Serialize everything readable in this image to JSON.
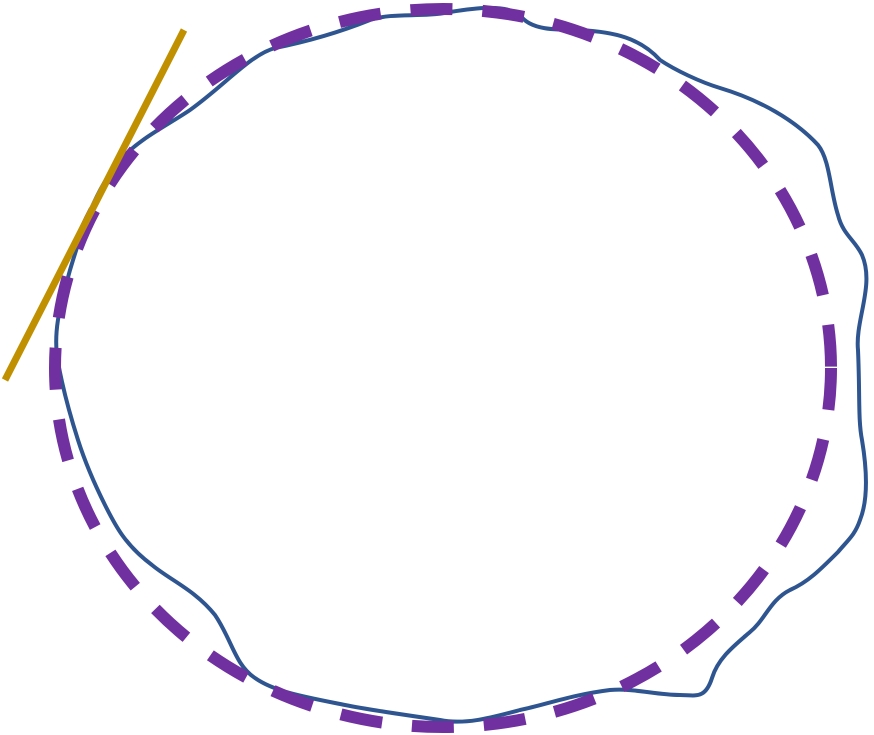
{
  "diagram": {
    "elements": [
      {
        "kind": "irregular-closed-curve",
        "color": "#2E5590",
        "line_style": "solid"
      },
      {
        "kind": "fitted-ellipse",
        "color": "#7030A0",
        "line_style": "dashed"
      },
      {
        "kind": "tangent-line",
        "color": "#C09000",
        "line_style": "solid"
      }
    ]
  }
}
